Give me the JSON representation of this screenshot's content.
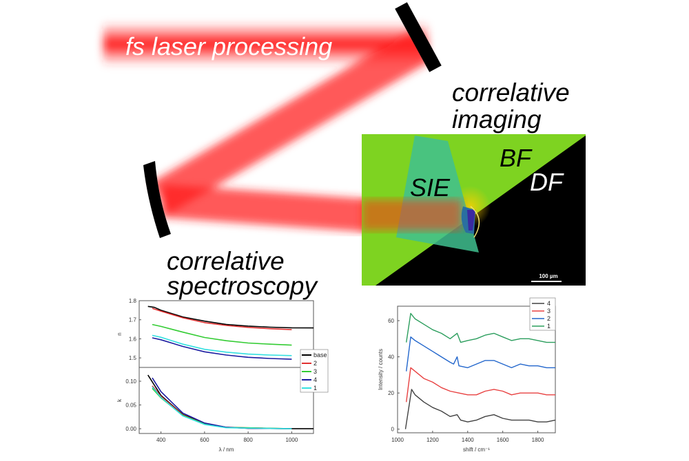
{
  "labels": {
    "laser": "fs laser processing",
    "imaging_line1": "correlative",
    "imaging_line2": "imaging",
    "spectroscopy_line1": "correlative",
    "spectroscopy_line2": "spectroscopy"
  },
  "micrograph": {
    "bf_label": "BF",
    "df_label": "DF",
    "sie_label": "SIE",
    "scale_bar": "100 µm",
    "colors": {
      "bright_field": "#7ed321",
      "dark_field": "#000000",
      "sie": "#3fbf8f",
      "laser": "#ff1a1a"
    }
  },
  "chart_data": [
    {
      "type": "line",
      "xlabel": "λ / nm",
      "xlim": [
        300,
        1100
      ],
      "xticks": [
        400,
        600,
        800,
        1000
      ],
      "legend_position": "right",
      "panels": [
        {
          "ylabel": "n",
          "ylim": [
            1.45,
            1.8
          ],
          "yticks": [
            "1.5",
            "1.6",
            "1.7",
            "1.8"
          ],
          "series": [
            {
              "name": "base",
              "color": "#000000",
              "points": [
                [
                  340,
                  1.77
                ],
                [
                  370,
                  1.765
                ],
                [
                  400,
                  1.75
                ],
                [
                  500,
                  1.715
                ],
                [
                  600,
                  1.693
                ],
                [
                  700,
                  1.675
                ],
                [
                  800,
                  1.667
                ],
                [
                  900,
                  1.661
                ],
                [
                  1000,
                  1.658
                ],
                [
                  1100,
                  1.657
                ]
              ]
            },
            {
              "name": "2",
              "color": "#e03030",
              "points": [
                [
                  360,
                  1.76
                ],
                [
                  400,
                  1.745
                ],
                [
                  500,
                  1.71
                ],
                [
                  600,
                  1.685
                ],
                [
                  700,
                  1.67
                ],
                [
                  800,
                  1.66
                ],
                [
                  900,
                  1.653
                ],
                [
                  1000,
                  1.648
                ]
              ]
            },
            {
              "name": "3",
              "color": "#33cc33",
              "points": [
                [
                  360,
                  1.675
                ],
                [
                  400,
                  1.665
                ],
                [
                  500,
                  1.635
                ],
                [
                  600,
                  1.607
                ],
                [
                  700,
                  1.59
                ],
                [
                  800,
                  1.578
                ],
                [
                  900,
                  1.572
                ],
                [
                  1000,
                  1.567
                ]
              ]
            },
            {
              "name": "4",
              "color": "#1a1aa0",
              "points": [
                [
                  360,
                  1.605
                ],
                [
                  400,
                  1.595
                ],
                [
                  500,
                  1.56
                ],
                [
                  600,
                  1.532
                ],
                [
                  700,
                  1.515
                ],
                [
                  800,
                  1.503
                ],
                [
                  900,
                  1.497
                ],
                [
                  1000,
                  1.493
                ]
              ]
            },
            {
              "name": "1",
              "color": "#33e0e0",
              "points": [
                [
                  360,
                  1.618
                ],
                [
                  400,
                  1.608
                ],
                [
                  500,
                  1.572
                ],
                [
                  600,
                  1.545
                ],
                [
                  700,
                  1.53
                ],
                [
                  800,
                  1.52
                ],
                [
                  900,
                  1.515
                ],
                [
                  1000,
                  1.512
                ]
              ]
            }
          ]
        },
        {
          "ylabel": "k",
          "ylim": [
            -0.01,
            0.129
          ],
          "yticks": [
            "0.00",
            "0.05",
            "0.10"
          ],
          "series": [
            {
              "name": "base",
              "color": "#000000",
              "points": [
                [
                  340,
                  0.113
                ],
                [
                  400,
                  0.07
                ],
                [
                  500,
                  0.03
                ],
                [
                  600,
                  0.011
                ],
                [
                  700,
                  0.003
                ],
                [
                  800,
                  0.001
                ],
                [
                  1000,
                  0
                ],
                [
                  1100,
                  0
                ]
              ]
            },
            {
              "name": "2",
              "color": "#e03030",
              "points": [
                [
                  360,
                  0.09
                ],
                [
                  400,
                  0.068
                ],
                [
                  500,
                  0.029
                ],
                [
                  600,
                  0.01
                ],
                [
                  700,
                  0.003
                ],
                [
                  1000,
                  0
                ]
              ]
            },
            {
              "name": "3",
              "color": "#33cc33",
              "points": [
                [
                  360,
                  0.085
                ],
                [
                  400,
                  0.065
                ],
                [
                  500,
                  0.028
                ],
                [
                  600,
                  0.01
                ],
                [
                  700,
                  0.003
                ],
                [
                  1000,
                  0
                ]
              ]
            },
            {
              "name": "4",
              "color": "#1a1aa0",
              "points": [
                [
                  360,
                  0.107
                ],
                [
                  400,
                  0.078
                ],
                [
                  500,
                  0.033
                ],
                [
                  600,
                  0.012
                ],
                [
                  700,
                  0.003
                ],
                [
                  800,
                  0.001
                ],
                [
                  1000,
                  0
                ]
              ]
            },
            {
              "name": "1",
              "color": "#33e0e0",
              "points": [
                [
                  360,
                  0.088
                ],
                [
                  400,
                  0.066
                ],
                [
                  500,
                  0.027
                ],
                [
                  600,
                  0.009
                ],
                [
                  700,
                  0.002
                ],
                [
                  1000,
                  0
                ]
              ]
            }
          ]
        }
      ]
    },
    {
      "type": "line",
      "xlabel": "shift / cm⁻¹",
      "ylabel": "Intensity / counts",
      "xlim": [
        1000,
        1900
      ],
      "ylim": [
        -2,
        68
      ],
      "xticks": [
        1000,
        1200,
        1400,
        1600,
        1800
      ],
      "yticks": [
        0,
        20,
        40,
        60
      ],
      "legend_position": "top-right",
      "series": [
        {
          "name": "4",
          "color": "#404040",
          "points": [
            [
              1045,
              0
            ],
            [
              1080,
              22
            ],
            [
              1100,
              19
            ],
            [
              1150,
              15
            ],
            [
              1200,
              12
            ],
            [
              1250,
              10
            ],
            [
              1300,
              7
            ],
            [
              1340,
              8
            ],
            [
              1360,
              5
            ],
            [
              1400,
              4
            ],
            [
              1450,
              5
            ],
            [
              1500,
              7
            ],
            [
              1550,
              8
            ],
            [
              1600,
              6
            ],
            [
              1650,
              5
            ],
            [
              1700,
              5
            ],
            [
              1750,
              5
            ],
            [
              1800,
              4
            ],
            [
              1850,
              4
            ],
            [
              1900,
              5
            ]
          ]
        },
        {
          "name": "3",
          "color": "#e84040",
          "points": [
            [
              1050,
              15
            ],
            [
              1075,
              34
            ],
            [
              1100,
              32
            ],
            [
              1150,
              28
            ],
            [
              1200,
              26
            ],
            [
              1250,
              23
            ],
            [
              1300,
              21
            ],
            [
              1350,
              20
            ],
            [
              1400,
              19
            ],
            [
              1450,
              19
            ],
            [
              1500,
              21
            ],
            [
              1550,
              22
            ],
            [
              1600,
              21
            ],
            [
              1650,
              19
            ],
            [
              1700,
              20
            ],
            [
              1750,
              20
            ],
            [
              1800,
              20
            ],
            [
              1850,
              19
            ],
            [
              1900,
              19
            ]
          ]
        },
        {
          "name": "2",
          "color": "#2266cc",
          "points": [
            [
              1050,
              32
            ],
            [
              1075,
              51
            ],
            [
              1100,
              49
            ],
            [
              1150,
              46
            ],
            [
              1200,
              43
            ],
            [
              1250,
              40
            ],
            [
              1300,
              37
            ],
            [
              1320,
              36
            ],
            [
              1340,
              40
            ],
            [
              1350,
              35
            ],
            [
              1400,
              34
            ],
            [
              1450,
              36
            ],
            [
              1500,
              38
            ],
            [
              1550,
              38
            ],
            [
              1600,
              36
            ],
            [
              1650,
              34
            ],
            [
              1700,
              36
            ],
            [
              1750,
              35
            ],
            [
              1800,
              35
            ],
            [
              1850,
              34
            ],
            [
              1900,
              34
            ]
          ]
        },
        {
          "name": "1",
          "color": "#2a9d5c",
          "points": [
            [
              1050,
              48
            ],
            [
              1075,
              64
            ],
            [
              1100,
              61
            ],
            [
              1150,
              58
            ],
            [
              1200,
              55
            ],
            [
              1250,
              53
            ],
            [
              1300,
              50
            ],
            [
              1340,
              53
            ],
            [
              1360,
              48
            ],
            [
              1400,
              49
            ],
            [
              1450,
              50
            ],
            [
              1500,
              52
            ],
            [
              1550,
              53
            ],
            [
              1600,
              51
            ],
            [
              1650,
              49
            ],
            [
              1700,
              50
            ],
            [
              1750,
              50
            ],
            [
              1800,
              49
            ],
            [
              1850,
              48
            ],
            [
              1900,
              48
            ]
          ]
        }
      ]
    }
  ]
}
